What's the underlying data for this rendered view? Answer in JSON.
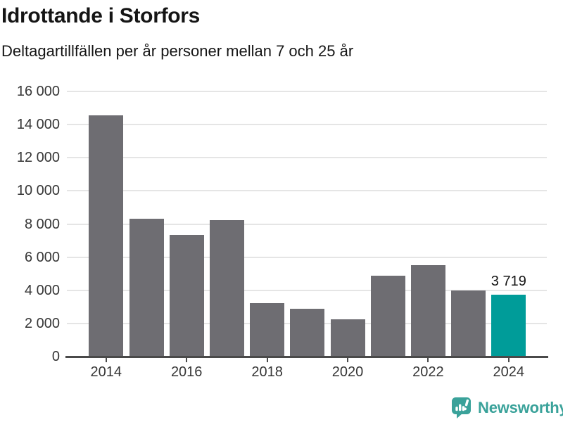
{
  "chart_data": {
    "type": "bar",
    "title": "Idrottande i Storfors",
    "subtitle": "Deltagartillfällen per år personer mellan 7 och 25 år",
    "categories": [
      "2014",
      "2015",
      "2016",
      "2017",
      "2018",
      "2019",
      "2020",
      "2021",
      "2022",
      "2023",
      "2024"
    ],
    "values": [
      14550,
      8300,
      7350,
      8250,
      3230,
      2880,
      2230,
      4900,
      5530,
      3990,
      3719
    ],
    "highlight_index": 10,
    "highlight_label": "3 719",
    "xlabel": "",
    "ylabel": "",
    "ylim": [
      0,
      16000
    ],
    "ytick_step": 2000,
    "ytick_labels": [
      "0",
      "2 000",
      "4 000",
      "6 000",
      "8 000",
      "10 000",
      "12 000",
      "14 000",
      "16 000"
    ],
    "xtick_labels": [
      "2014",
      "2016",
      "2018",
      "2020",
      "2022",
      "2024"
    ],
    "grid": "horizontal",
    "legend": "none",
    "bar_color": "#6e6d72",
    "highlight_color": "#009c99"
  },
  "footer": {
    "brand": "Newsworthy",
    "brand_color": "#3aa29a"
  }
}
